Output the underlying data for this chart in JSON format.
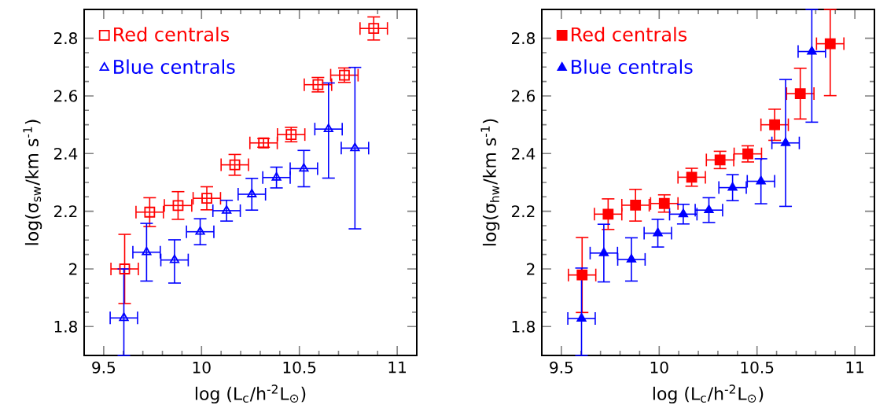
{
  "chart_data": [
    {
      "type": "scatter",
      "xlabel": "log (L$_{c}$/h$^{-2}$L$_{⊙}$)",
      "ylabel": "log(σ$_{sw}$/km s$^{-1}$)",
      "xlim": [
        9.4,
        11.1
      ],
      "ylim": [
        1.7,
        2.9
      ],
      "xticks": [
        9.5,
        10,
        10.5,
        11
      ],
      "yticks": [
        1.8,
        2,
        2.2,
        2.4,
        2.6,
        2.8
      ],
      "legend": "top left",
      "series": [
        {
          "name": "Red centrals",
          "color": "#ff0000",
          "marker": "square",
          "x": [
            9.607,
            9.735,
            9.88,
            10.027,
            10.17,
            10.317,
            10.458,
            10.595,
            10.73,
            10.88
          ],
          "values": [
            2.0,
            2.197,
            2.22,
            2.245,
            2.361,
            2.437,
            2.466,
            2.639,
            2.672,
            2.834
          ],
          "errors": [
            0.12,
            0.05,
            0.048,
            0.04,
            0.036,
            0.015,
            0.025,
            0.025,
            0.025,
            0.04
          ],
          "xerrors": [
            0.07,
            0.07,
            0.07,
            0.07,
            0.07,
            0.07,
            0.07,
            0.07,
            0.07,
            0.07
          ]
        },
        {
          "name": "Blue centrals",
          "color": "#0000ff",
          "marker": "triangle",
          "x": [
            9.603,
            9.719,
            9.862,
            9.993,
            10.128,
            10.257,
            10.383,
            10.523,
            10.649,
            10.784
          ],
          "values": [
            1.83,
            2.058,
            2.031,
            2.129,
            2.202,
            2.259,
            2.317,
            2.348,
            2.485,
            2.419
          ],
          "errors": [
            [
              1.7,
              2.0
            ],
            0.1,
            [
              1.951,
              2.101
            ],
            0.045,
            0.036,
            0.055,
            0.036,
            0.063,
            [
              2.315,
              2.645
            ],
            0.28
          ],
          "xerrors": [
            0.07,
            0.07,
            0.07,
            0.07,
            0.07,
            0.07,
            0.07,
            0.07,
            0.07,
            0.07
          ]
        }
      ]
    },
    {
      "type": "scatter",
      "xlabel": "log (L$_{c}$/h$^{-2}$L$_{⊙}$)",
      "ylabel": "log(σ$_{hw}$/km s$^{-1}$)",
      "xlim": [
        9.4,
        11.1
      ],
      "ylim": [
        1.7,
        2.9
      ],
      "xticks": [
        9.5,
        10,
        10.5,
        11
      ],
      "yticks": [
        1.8,
        2,
        2.2,
        2.4,
        2.6,
        2.8
      ],
      "legend": "top left",
      "series": [
        {
          "name": "Red centrals",
          "color": "#ff0000",
          "marker": "square",
          "x": [
            9.606,
            9.739,
            9.879,
            10.026,
            10.166,
            10.311,
            10.453,
            10.59,
            10.721,
            10.874
          ],
          "values": [
            1.979,
            2.19,
            2.221,
            2.227,
            2.318,
            2.378,
            2.399,
            2.5,
            2.608,
            2.781
          ],
          "errors": [
            0.13,
            0.053,
            0.055,
            0.03,
            0.031,
            0.03,
            0.028,
            0.054,
            0.088,
            [
              2.601,
              2.9
            ]
          ],
          "xerrors": [
            0.07,
            0.07,
            0.07,
            0.07,
            0.07,
            0.07,
            0.07,
            0.07,
            0.07,
            0.07
          ]
        },
        {
          "name": "Blue centrals",
          "color": "#0000ff",
          "marker": "triangle",
          "x": [
            9.603,
            9.717,
            9.858,
            9.993,
            10.123,
            10.254,
            10.375,
            10.52,
            10.646,
            10.78
          ],
          "values": [
            1.828,
            2.055,
            2.033,
            2.124,
            2.19,
            2.204,
            2.282,
            2.304,
            2.437,
            2.754
          ],
          "errors": [
            [
              1.7,
              2.003
            ],
            0.1,
            0.075,
            0.048,
            0.034,
            0.043,
            0.045,
            0.078,
            0.22,
            [
              2.509,
              2.9
            ]
          ],
          "xerrors": [
            0.07,
            0.07,
            0.07,
            0.07,
            0.07,
            0.07,
            0.07,
            0.07,
            0.07,
            0.07
          ]
        }
      ]
    }
  ]
}
